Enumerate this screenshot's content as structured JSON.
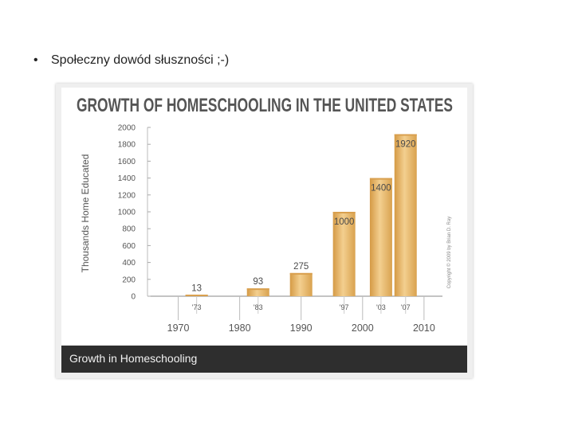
{
  "slide": {
    "bullet_symbol": "•",
    "bullet_text": "Społeczny dowód słuszności ;-)"
  },
  "figure": {
    "caption": "Growth in Homeschooling",
    "copyright": "Copyright © 2009 by Brian D. Ray"
  },
  "chart_data": {
    "type": "bar",
    "title": "GROWTH OF HOMESCHOOLING IN THE UNITED STATES",
    "ylabel": "Thousands Home Educated",
    "xlabel": "",
    "ylim": [
      0,
      2000
    ],
    "yticks": [
      0,
      200,
      400,
      600,
      800,
      1000,
      1200,
      1400,
      1600,
      1800,
      2000
    ],
    "xlim": [
      1965,
      2013
    ],
    "xticks_major": [
      1970,
      1980,
      1990,
      2000,
      2010
    ],
    "categories": [
      "'73",
      "'83",
      "'90",
      "'97",
      "'03",
      "'07"
    ],
    "bar_years": [
      1973,
      1983,
      1990,
      1997,
      2003,
      2007
    ],
    "category_labels_shown": [
      "'73",
      "'83",
      "",
      "'97",
      "'03",
      "'07"
    ],
    "values": [
      13,
      93,
      275,
      1000,
      1400,
      1920
    ],
    "bar_color": "#e8b86c",
    "bar_color_dark": "#d9a04f",
    "grid": false
  }
}
